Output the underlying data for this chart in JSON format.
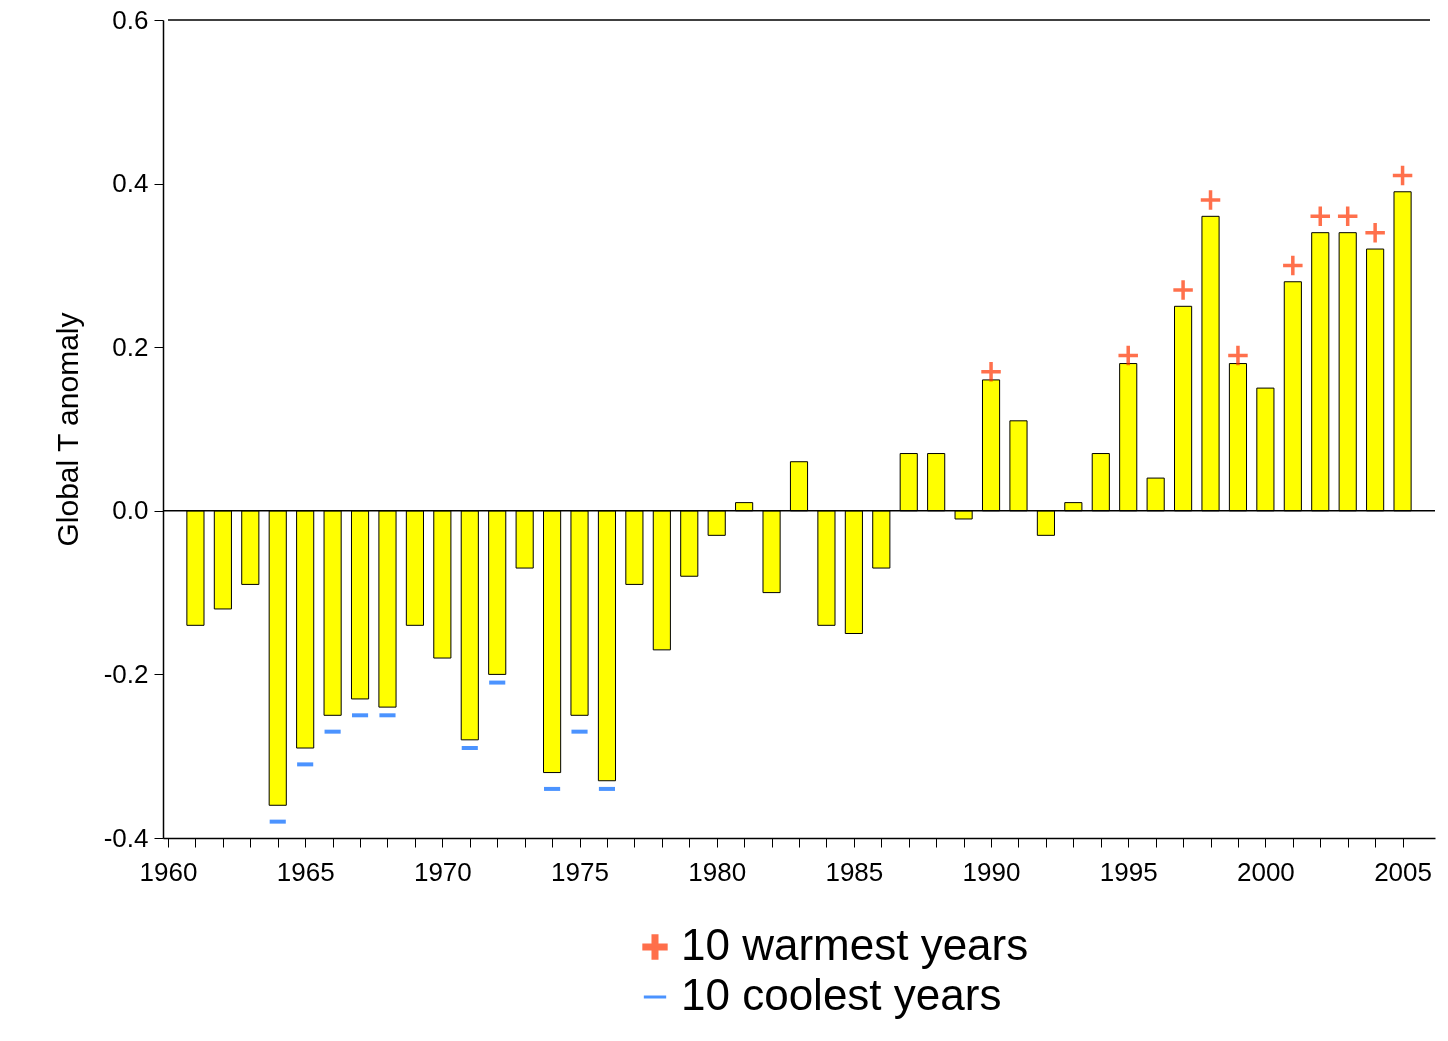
{
  "chart_data": {
    "type": "bar",
    "ylabel": "Global T anomaly",
    "x": [
      1961,
      1962,
      1963,
      1964,
      1965,
      1966,
      1967,
      1968,
      1969,
      1970,
      1971,
      1972,
      1973,
      1974,
      1975,
      1976,
      1977,
      1978,
      1979,
      1980,
      1981,
      1982,
      1983,
      1984,
      1985,
      1986,
      1987,
      1988,
      1989,
      1990,
      1991,
      1992,
      1993,
      1994,
      1995,
      1996,
      1997,
      1998,
      1999,
      2000,
      2001,
      2002,
      2003,
      2004,
      2005
    ],
    "series": [
      {
        "color": "#ffff00",
        "values": [
          -0.14,
          -0.12,
          -0.09,
          -0.36,
          -0.29,
          -0.25,
          -0.23,
          -0.24,
          -0.14,
          -0.18,
          -0.28,
          -0.2,
          -0.07,
          -0.32,
          -0.25,
          -0.33,
          -0.09,
          -0.17,
          -0.08,
          -0.03,
          0.01,
          -0.1,
          0.06,
          -0.14,
          -0.15,
          -0.07,
          0.07,
          0.07,
          -0.01,
          0.16,
          0.11,
          -0.03,
          0.01,
          0.07,
          0.18,
          0.04,
          0.25,
          0.36,
          0.18,
          0.15,
          0.28,
          0.34,
          0.34,
          0.32,
          0.39
        ]
      },
      {
        "type": "scatter",
        "name": "10 warmest years",
        "color": "#ff3300",
        "marker": "cross",
        "x": [
          1990,
          1995,
          1997,
          1998,
          1999,
          2001,
          2002,
          2003,
          2004,
          2005
        ],
        "values": [
          0.17,
          0.19,
          0.27,
          0.38,
          0.19,
          0.3,
          0.36,
          0.36,
          0.34,
          0.41
        ]
      },
      {
        "type": "scatter",
        "name": "10 coolest years",
        "color": "#0066ff",
        "x": [
          1964,
          1965,
          1966,
          1967,
          1968,
          1971,
          1972,
          1974,
          1975,
          1976
        ],
        "values": [
          -0.38,
          -0.31,
          -0.27,
          -0.25,
          -0.25,
          -0.29,
          -0.21,
          -0.34,
          -0.27,
          -0.34
        ]
      }
    ],
    "xlim": [
      1960,
      2006
    ],
    "xticks": [
      1960,
      {
        "value": 1961,
        "label": null
      },
      {
        "value": 1962,
        "label": null
      },
      {
        "value": 1963,
        "label": null
      },
      {
        "value": 1964,
        "label": null
      },
      1965,
      {
        "value": 1966,
        "label": null
      },
      {
        "value": 1967,
        "label": null
      },
      {
        "value": 1968,
        "label": null
      },
      {
        "value": 1969,
        "label": null
      },
      1970,
      {
        "value": 1971,
        "label": null
      },
      {
        "value": 1972,
        "label": null
      },
      {
        "value": 1973,
        "label": null
      },
      {
        "value": 1974,
        "label": null
      },
      1975,
      {
        "value": 1976,
        "label": null
      },
      {
        "value": 1977,
        "label": null
      },
      {
        "value": 1978,
        "label": null
      },
      {
        "value": 1979,
        "label": null
      },
      1980,
      {
        "value": 1981,
        "label": null
      },
      {
        "value": 1982,
        "label": null
      },
      {
        "value": 1983,
        "label": null
      },
      {
        "value": 1984,
        "label": null
      },
      1985,
      {
        "value": 1986,
        "label": null
      },
      {
        "value": 1987,
        "label": null
      },
      {
        "value": 1988,
        "label": null
      },
      {
        "value": 1989,
        "label": null
      },
      1990,
      {
        "value": 1991,
        "label": null
      },
      {
        "value": 1992,
        "label": null
      },
      {
        "value": 1993,
        "label": null
      },
      {
        "value": 1994,
        "label": null
      },
      1995,
      {
        "value": 1996,
        "label": null
      },
      {
        "value": 1997,
        "label": null
      },
      {
        "value": 1998,
        "label": null
      },
      {
        "value": 1999,
        "label": null
      },
      2000,
      {
        "value": 2001,
        "label": null
      },
      {
        "value": 2002,
        "label": null
      },
      {
        "value": 2003,
        "label": null
      },
      {
        "value": 2004,
        "label": null
      },
      2005
    ],
    "ylim": [
      -0.4,
      0.6
    ],
    "yticks": [
      -0.4,
      -0.2,
      {
        "value": 0,
        "label": "0.0"
      },
      0.2,
      0.4,
      0.6
    ],
    "ref_lines": [
      {
        "axis": "y",
        "value": 0
      }
    ],
    "grid": false,
    "legend": "bottom"
  }
}
